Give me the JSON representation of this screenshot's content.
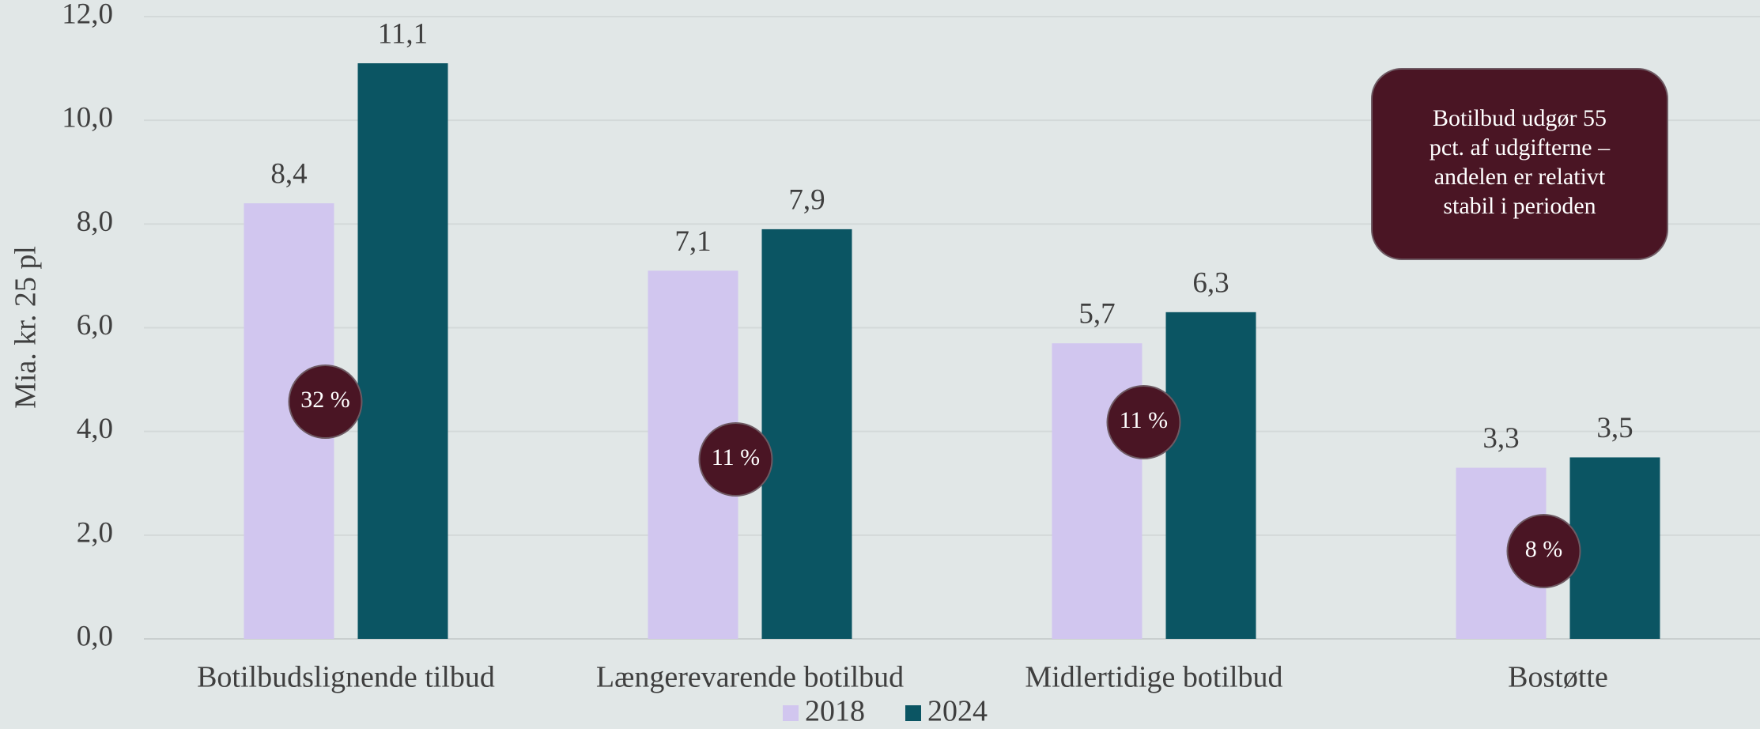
{
  "chart_data": {
    "type": "bar",
    "y_axis_label": "Mia. kr. 25 pl",
    "categories": [
      "Botilbudslignende tilbud",
      "Længerevarende botilbud",
      "Midlertidige botilbud",
      "Bostøtte"
    ],
    "series": [
      {
        "name": "2018",
        "color": "#d1c6ef",
        "values": [
          8.4,
          7.1,
          5.7,
          3.3
        ],
        "value_labels": [
          "8,4",
          "7,1",
          "5,7",
          "3,3"
        ]
      },
      {
        "name": "2024",
        "color": "#0b5563",
        "values": [
          11.1,
          7.9,
          6.3,
          3.5
        ],
        "value_labels": [
          "11,1",
          "7,9",
          "6,3",
          "3,5"
        ]
      }
    ],
    "ylim": [
      0,
      12
    ],
    "yticks": [
      {
        "value": 0,
        "label": "0,0"
      },
      {
        "value": 2,
        "label": "2,0"
      },
      {
        "value": 4,
        "label": "4,0"
      },
      {
        "value": 6,
        "label": "6,0"
      },
      {
        "value": 8,
        "label": "8,0"
      },
      {
        "value": 10,
        "label": "10,0"
      },
      {
        "value": 12,
        "label": "12,0"
      }
    ],
    "grid": true,
    "legend": "bottom",
    "badges": [
      "32 %",
      "11 %",
      "11 %",
      "8 %"
    ],
    "annotation": [
      "Botilbud udgør 55",
      "pct. af udgifterne –",
      "andelen er relativt",
      "stabil i perioden"
    ]
  }
}
